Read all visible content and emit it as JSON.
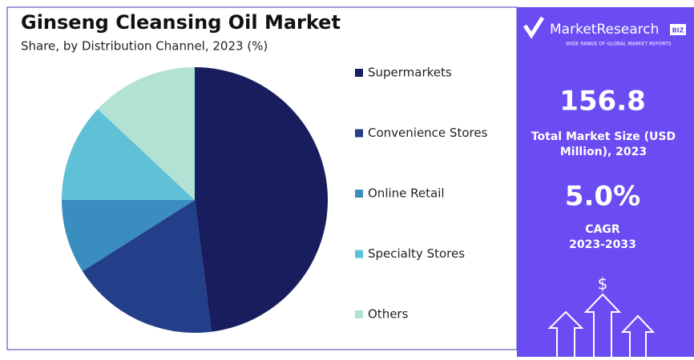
{
  "chart_data": {
    "type": "pie",
    "title": "Ginseng Cleansing Oil Market",
    "subtitle": "Share, by Distribution Channel, 2023 (%)",
    "categories": [
      "Supermarkets",
      "Convenience Stores",
      "Online Retail",
      "Specialty Stores",
      "Others"
    ],
    "values": [
      48,
      18,
      9,
      12,
      13
    ],
    "colors": [
      "#181d5e",
      "#243f8a",
      "#3a8dbf",
      "#5fc0d6",
      "#b1e2d3"
    ]
  },
  "panel": {
    "brand": "MarketResearch",
    "brand_badge": "BIZ",
    "tagline": "WIDE RANGE OF GLOBAL MARKET REPORTS",
    "market_size": "156.8",
    "market_size_label": "Total Market Size (USD Million), 2023",
    "cagr": "5.0%",
    "cagr_label": "CAGR",
    "cagr_period": "2023-2033",
    "icon_symbol": "$"
  }
}
